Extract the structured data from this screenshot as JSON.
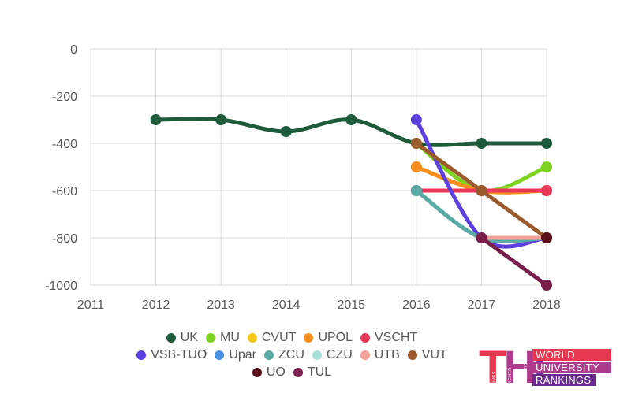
{
  "chart_data": {
    "type": "line",
    "title": "",
    "xlabel": "",
    "ylabel": "",
    "x_ticks": [
      "2011",
      "2012",
      "2013",
      "2014",
      "2015",
      "2016",
      "2017",
      "2018"
    ],
    "y_ticks": [
      "0",
      "-200",
      "-400",
      "-600",
      "-800",
      "-1000"
    ],
    "xlim": [
      2011,
      2018
    ],
    "ylim": [
      -1000,
      0
    ],
    "grid": true,
    "legend_position": "bottom",
    "series": [
      {
        "name": "UK",
        "color": "#1e5b3a",
        "x": [
          2012,
          2013,
          2014,
          2015,
          2016,
          2017,
          2018
        ],
        "y": [
          -300,
          -300,
          -350,
          -300,
          -400,
          -400,
          -400
        ]
      },
      {
        "name": "MU",
        "color": "#7ed321",
        "x": [
          2016,
          2017,
          2018
        ],
        "y": [
          -400,
          -600,
          -500
        ]
      },
      {
        "name": "CVUT",
        "color": "#f5c518",
        "x": [
          2016,
          2017,
          2018
        ],
        "y": [
          -500,
          -600,
          -600
        ]
      },
      {
        "name": "UPOL",
        "color": "#f78f1e",
        "x": [
          2016,
          2017,
          2018
        ],
        "y": [
          -500,
          -600,
          -600
        ]
      },
      {
        "name": "VSCHT",
        "color": "#e8385a",
        "x": [
          2016,
          2017,
          2018
        ],
        "y": [
          -600,
          -600,
          -600
        ]
      },
      {
        "name": "VSB-TUO",
        "color": "#5b3fe0",
        "x": [
          2016,
          2017,
          2018
        ],
        "y": [
          -300,
          -800,
          -800
        ]
      },
      {
        "name": "Upar",
        "color": "#4a90e2",
        "x": [
          2016,
          2017,
          2018
        ],
        "y": [
          -600,
          -800,
          -800
        ]
      },
      {
        "name": "ZCU",
        "color": "#5aaba3",
        "x": [
          2016,
          2017,
          2018
        ],
        "y": [
          -600,
          -800,
          -800
        ]
      },
      {
        "name": "CZU",
        "color": "#a9dfd8",
        "x": [
          2017,
          2018
        ],
        "y": [
          -800,
          -800
        ]
      },
      {
        "name": "UTB",
        "color": "#f4a09a",
        "x": [
          2017,
          2018
        ],
        "y": [
          -800,
          -800
        ]
      },
      {
        "name": "VUT",
        "color": "#9b5a2e",
        "x": [
          2016,
          2017,
          2018
        ],
        "y": [
          -400,
          -600,
          -800
        ]
      },
      {
        "name": "UO",
        "color": "#5a0f1a",
        "x": [
          2018
        ],
        "y": [
          -800
        ]
      },
      {
        "name": "TUL",
        "color": "#7a1e4c",
        "x": [
          2017,
          2018
        ],
        "y": [
          -800,
          -1000
        ]
      }
    ]
  },
  "legend_rows": [
    [
      "UK",
      "MU",
      "CVUT",
      "UPOL",
      "VSCHT"
    ],
    [
      "VSB-TUO",
      "Upar",
      "ZCU",
      "CZU",
      "UTB",
      "VUT"
    ],
    [
      "UO",
      "TUL"
    ]
  ],
  "logo": {
    "letter_t": "T",
    "letter_h": "H",
    "letter_e": "E",
    "vertical_text_1": "TIMES",
    "vertical_text_2": "HIGHER",
    "vertical_text_3": "EDUCATION",
    "line1": "WORLD",
    "line2": "UNIVERSITY",
    "line3": "RANKINGS",
    "colors": [
      "#e8384f",
      "#b03a8e",
      "#6b2a8f"
    ]
  }
}
